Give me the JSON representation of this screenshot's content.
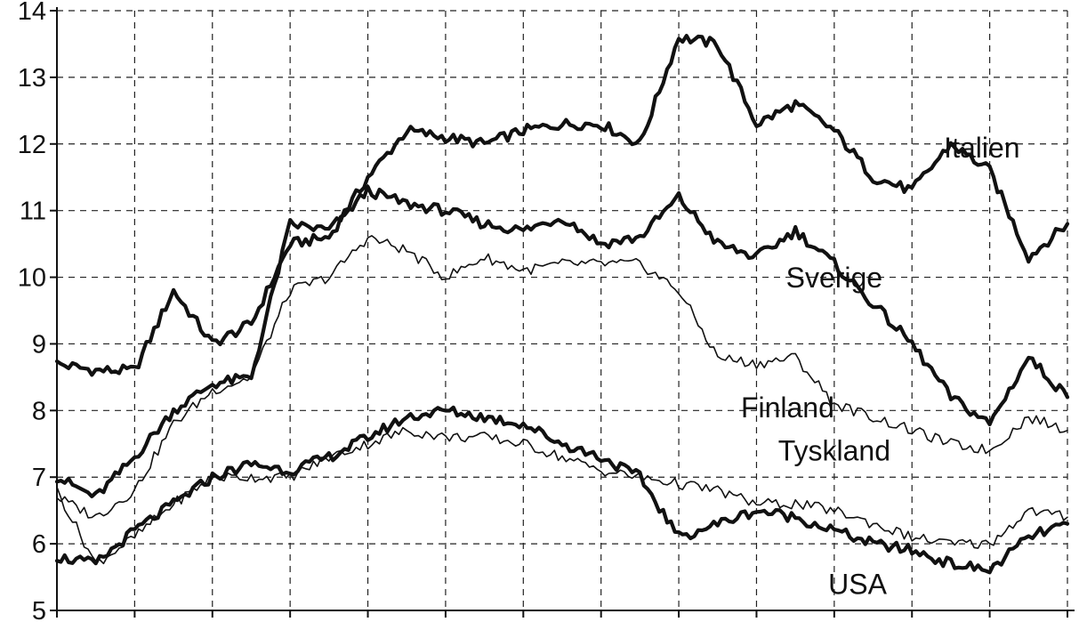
{
  "chart_data": {
    "type": "line",
    "title": "",
    "xlabel": "",
    "ylabel": "",
    "ylim": [
      5,
      14
    ],
    "yticks": [
      5,
      6,
      7,
      8,
      9,
      10,
      11,
      12,
      13,
      14
    ],
    "ytick_labels": [
      "5",
      "6",
      "7",
      "8",
      "9",
      "10",
      "11",
      "12",
      "13",
      "14"
    ],
    "x_divisions": 13,
    "grid": true,
    "x": [
      0,
      0.5,
      1,
      1.5,
      2,
      2.5,
      3,
      3.5,
      4,
      4.5,
      5,
      5.5,
      6,
      6.5,
      7,
      7.5,
      8,
      8.5,
      9,
      9.5,
      10,
      10.5,
      11,
      11.5,
      12,
      12.5,
      13
    ],
    "series": [
      {
        "name": "Italien",
        "weight": "heavy",
        "values": [
          8.7,
          8.6,
          8.6,
          9.8,
          9.0,
          9.3,
          10.5,
          10.6,
          11.5,
          12.2,
          12.1,
          12.0,
          12.2,
          12.3,
          12.3,
          12.0,
          13.6,
          13.5,
          12.3,
          12.6,
          12.2,
          11.5,
          11.3,
          12.0,
          11.6,
          10.3,
          10.8
        ]
      },
      {
        "name": "Sverige",
        "weight": "heavy",
        "values": [
          7.0,
          6.7,
          7.3,
          8.0,
          8.4,
          8.5,
          10.8,
          10.7,
          11.3,
          11.1,
          11.0,
          10.8,
          10.7,
          10.9,
          10.5,
          10.6,
          11.2,
          10.5,
          10.3,
          10.7,
          10.2,
          9.6,
          9.0,
          8.2,
          7.8,
          8.8,
          8.2
        ]
      },
      {
        "name": "Finland",
        "weight": "thin",
        "values": [
          6.7,
          6.4,
          6.8,
          7.8,
          8.3,
          8.5,
          9.8,
          10.0,
          10.6,
          10.4,
          10.0,
          10.3,
          10.1,
          10.2,
          10.2,
          10.2,
          9.8,
          8.8,
          8.7,
          8.8,
          8.1,
          7.9,
          7.7,
          7.5,
          7.4,
          7.9,
          7.7
        ]
      },
      {
        "name": "Tyskland",
        "weight": "thin",
        "values": [
          6.8,
          5.7,
          6.1,
          6.6,
          7.0,
          7.0,
          7.0,
          7.3,
          7.5,
          7.7,
          7.6,
          7.6,
          7.5,
          7.3,
          7.1,
          7.0,
          6.9,
          6.8,
          6.6,
          6.6,
          6.5,
          6.3,
          6.1,
          6.0,
          6.0,
          6.5,
          6.4
        ]
      },
      {
        "name": "USA",
        "weight": "heavy",
        "values": [
          5.8,
          5.7,
          6.2,
          6.6,
          7.0,
          7.2,
          7.1,
          7.3,
          7.6,
          7.9,
          8.0,
          7.9,
          7.8,
          7.5,
          7.3,
          7.0,
          6.1,
          6.3,
          6.5,
          6.4,
          6.2,
          6.0,
          5.9,
          5.7,
          5.6,
          6.1,
          6.3
        ]
      }
    ],
    "colors": {
      "line": "#111111",
      "grid": "#222222",
      "background": "#ffffff"
    }
  }
}
